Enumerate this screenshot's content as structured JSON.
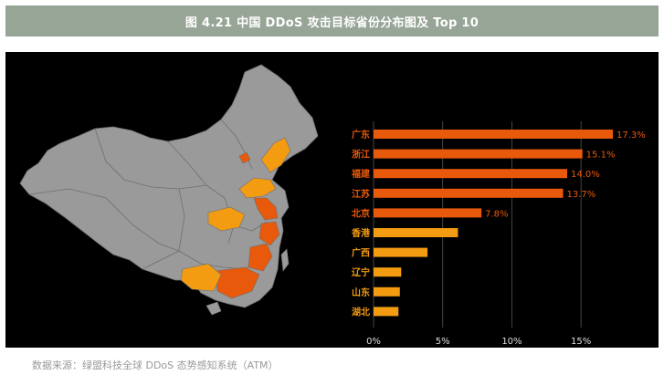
{
  "figure": {
    "title": "图 4.21 中国 DDoS 攻击目标省份分布图及 Top 10",
    "source": "数据来源：绿盟科技全球 DDoS 态势感知系统（ATM）"
  },
  "colors": {
    "title_bg": "#97a596",
    "panel_bg": "#000000",
    "map_base": "#9a9a9a",
    "map_border": "#6f6f6f",
    "highlight_strong": "#e8590c",
    "highlight_light": "#f39c12",
    "label_text": "#e8590c",
    "axis_text": "#dddddd",
    "grid": "#555555"
  },
  "chart_data": {
    "type": "bar",
    "orientation": "horizontal",
    "categories": [
      "广东",
      "浙江",
      "福建",
      "江苏",
      "北京",
      "香港",
      "广西",
      "辽宁",
      "山东",
      "湖北"
    ],
    "values": [
      17.3,
      15.1,
      14.0,
      13.7,
      7.8,
      6.1,
      3.9,
      2.0,
      1.9,
      1.8
    ],
    "data_labels": [
      "17.3%",
      "15.1%",
      "14.0%",
      "13.7%",
      "7.8%",
      "",
      "",
      "",
      "",
      ""
    ],
    "bar_colors": [
      "#e8590c",
      "#e8590c",
      "#e8590c",
      "#e8590c",
      "#e8590c",
      "#f39c12",
      "#f39c12",
      "#f39c12",
      "#f39c12",
      "#f39c12"
    ],
    "xlim": [
      0,
      17.3
    ],
    "xticks": [
      0,
      5,
      10,
      15
    ],
    "xtick_labels": [
      "0%",
      "5%",
      "10%",
      "15%"
    ],
    "grid": "vertical",
    "xlabel": "",
    "ylabel": ""
  },
  "map": {
    "highlighted": [
      "广东",
      "浙江",
      "福建",
      "江苏",
      "北京",
      "广西",
      "辽宁",
      "山东",
      "湖北"
    ]
  }
}
